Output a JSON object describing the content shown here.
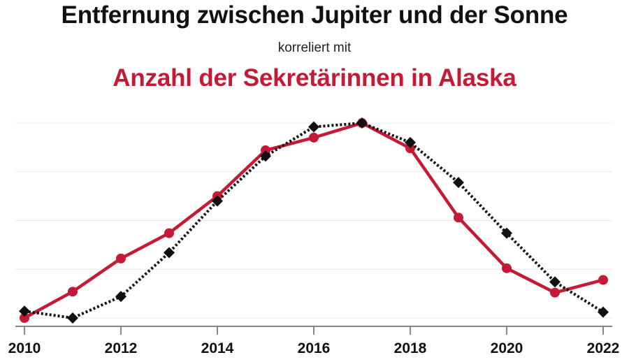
{
  "chart_data": {
    "type": "line",
    "title": "Entfernung zwischen Jupiter und der Sonne",
    "subtitle": "korreliert mit",
    "title2": "Anzahl der Sekretärinnen in Alaska",
    "x": [
      2010,
      2011,
      2012,
      2013,
      2014,
      2015,
      2016,
      2017,
      2018,
      2019,
      2020,
      2021,
      2022
    ],
    "x_ticks": [
      "2010",
      "2012",
      "2014",
      "2016",
      "2018",
      "2020",
      "2022"
    ],
    "xlim": [
      2010,
      2022
    ],
    "ylim": [
      0,
      100
    ],
    "grid": true,
    "series": [
      {
        "color": "#c41a36",
        "marker": "circle",
        "line": "solid",
        "values": [
          0.0,
          13.5,
          30.5,
          43.5,
          62.5,
          86.0,
          92.5,
          100.0,
          87.0,
          51.5,
          25.5,
          13.0,
          19.5
        ]
      },
      {
        "color": "#111111",
        "marker": "diamond",
        "line": "dotted",
        "values": [
          3.5,
          0.0,
          11.0,
          33.5,
          60.0,
          83.0,
          98.0,
          100.0,
          90.0,
          69.5,
          43.5,
          18.5,
          3.0
        ]
      }
    ]
  }
}
